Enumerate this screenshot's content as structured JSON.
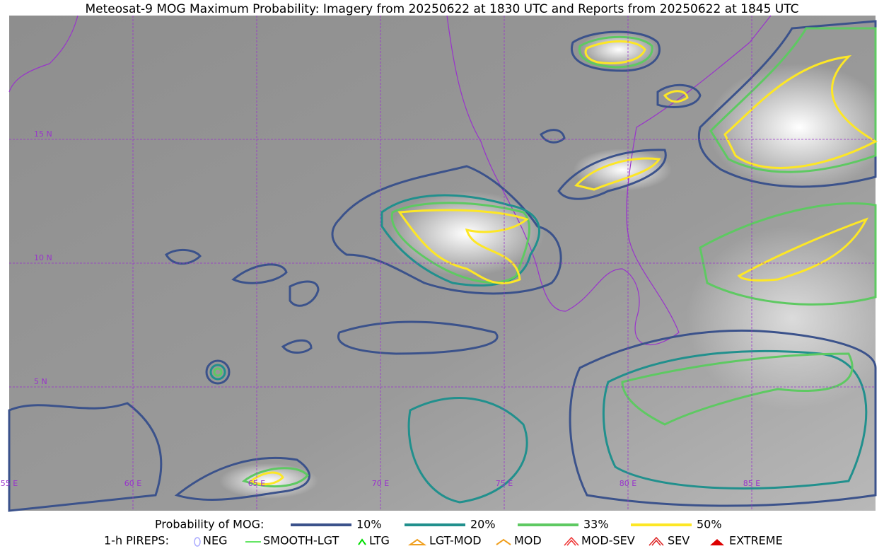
{
  "title": "Meteosat-9 MOG Maximum Probability: Imagery from 20250622 at 1830 UTC and Reports from 20250622 at 1845 UTC",
  "map": {
    "lat_labels": [
      "15 N",
      "10 N",
      "5 N"
    ],
    "lon_labels": [
      "55 E",
      "60 E",
      "65 E",
      "70 E",
      "75 E",
      "80 E",
      "85 E"
    ]
  },
  "legend": {
    "probability_title": "Probability of MOG:",
    "probability_levels": [
      "10%",
      "20%",
      "33%",
      "50%"
    ],
    "pireps_title": "1-h PIREPS:",
    "pireps": [
      "NEG",
      "SMOOTH-LGT",
      "LTG",
      "LGT-MOD",
      "MOD",
      "MOD-SEV",
      "SEV",
      "EXTREME"
    ]
  }
}
